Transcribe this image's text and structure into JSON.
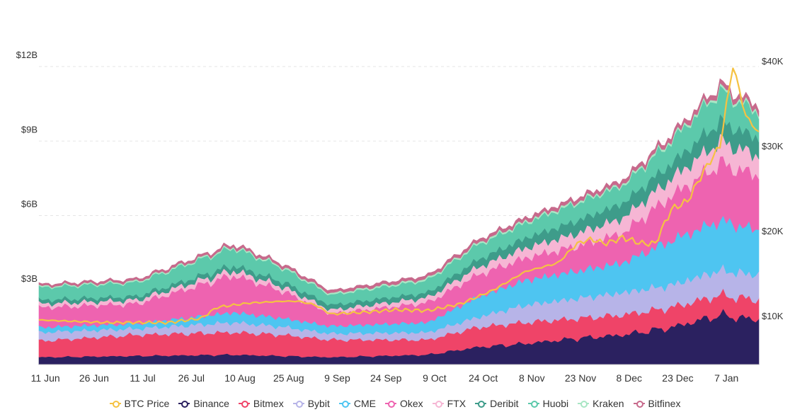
{
  "chart_data": {
    "type": "area",
    "stacked": true,
    "x_labels": [
      "11 Jun",
      "26 Jun",
      "11 Jul",
      "26 Jul",
      "10 Aug",
      "25 Aug",
      "9 Sep",
      "24 Sep",
      "9 Oct",
      "24 Oct",
      "8 Nov",
      "23 Nov",
      "8 Dec",
      "23 Dec",
      "7 Jan"
    ],
    "x_label_index": [
      2,
      17,
      32,
      47,
      62,
      77,
      92,
      107,
      122,
      137,
      152,
      167,
      182,
      197,
      212
    ],
    "y_left": {
      "ticks": [
        3,
        6,
        9,
        12
      ],
      "labels": [
        "$3B",
        "$6B",
        "$9B",
        "$12B"
      ],
      "range": [
        0,
        13.5
      ]
    },
    "y_right": {
      "ticks": [
        10000,
        20000,
        30000,
        40000
      ],
      "labels": [
        "$10K",
        "$20K",
        "$30K",
        "$40K"
      ],
      "range": [
        3000,
        45000
      ]
    },
    "grid": "horizontal-dashed",
    "legend_position": "bottom",
    "series": [
      {
        "name": "Binance",
        "color": "#2b2160",
        "kf": [
          [
            0,
            0.3
          ],
          [
            30,
            0.35
          ],
          [
            60,
            0.4
          ],
          [
            90,
            0.3
          ],
          [
            120,
            0.4
          ],
          [
            135,
            0.7
          ],
          [
            150,
            0.85
          ],
          [
            165,
            1.05
          ],
          [
            180,
            1.2
          ],
          [
            195,
            1.5
          ],
          [
            210,
            2.0
          ],
          [
            222,
            1.8
          ]
        ]
      },
      {
        "name": "Bitmex",
        "color": "#ef4468",
        "kf": [
          [
            0,
            0.65
          ],
          [
            30,
            0.85
          ],
          [
            60,
            0.9
          ],
          [
            75,
            0.85
          ],
          [
            90,
            0.7
          ],
          [
            120,
            0.6
          ],
          [
            135,
            0.8
          ],
          [
            150,
            0.85
          ],
          [
            165,
            0.8
          ],
          [
            180,
            0.8
          ],
          [
            195,
            0.8
          ],
          [
            210,
            0.8
          ],
          [
            222,
            0.8
          ]
        ]
      },
      {
        "name": "Bybit",
        "color": "#b7b4e8",
        "kf": [
          [
            0,
            0.35
          ],
          [
            30,
            0.25
          ],
          [
            60,
            0.4
          ],
          [
            90,
            0.25
          ],
          [
            120,
            0.3
          ],
          [
            135,
            0.4
          ],
          [
            150,
            0.7
          ],
          [
            165,
            0.8
          ],
          [
            180,
            0.9
          ],
          [
            195,
            0.9
          ],
          [
            210,
            1.0
          ],
          [
            222,
            1.0
          ]
        ]
      },
      {
        "name": "CME",
        "color": "#4ec5f1",
        "kf": [
          [
            0,
            0.2
          ],
          [
            30,
            0.2
          ],
          [
            60,
            0.4
          ],
          [
            90,
            0.3
          ],
          [
            120,
            0.4
          ],
          [
            135,
            0.8
          ],
          [
            150,
            1.0
          ],
          [
            165,
            1.1
          ],
          [
            180,
            1.2
          ],
          [
            195,
            1.8
          ],
          [
            210,
            2.0
          ],
          [
            222,
            1.8
          ]
        ]
      },
      {
        "name": "Okex",
        "color": "#ee63b0",
        "kf": [
          [
            0,
            0.8
          ],
          [
            30,
            0.8
          ],
          [
            60,
            1.5
          ],
          [
            75,
            1.1
          ],
          [
            90,
            0.5
          ],
          [
            120,
            0.8
          ],
          [
            135,
            0.9
          ],
          [
            150,
            0.9
          ],
          [
            165,
            1.0
          ],
          [
            180,
            1.2
          ],
          [
            195,
            1.8
          ],
          [
            210,
            2.3
          ],
          [
            222,
            2.2
          ]
        ]
      },
      {
        "name": "FTX",
        "color": "#f6b6d4",
        "kf": [
          [
            0,
            0.15
          ],
          [
            30,
            0.15
          ],
          [
            60,
            0.2
          ],
          [
            90,
            0.15
          ],
          [
            120,
            0.2
          ],
          [
            135,
            0.3
          ],
          [
            150,
            0.4
          ],
          [
            165,
            0.5
          ],
          [
            180,
            0.6
          ],
          [
            195,
            0.7
          ],
          [
            210,
            0.9
          ],
          [
            222,
            0.8
          ]
        ]
      },
      {
        "name": "Deribit",
        "color": "#3e9c8a",
        "kf": [
          [
            0,
            0.15
          ],
          [
            30,
            0.15
          ],
          [
            60,
            0.2
          ],
          [
            90,
            0.2
          ],
          [
            120,
            0.2
          ],
          [
            135,
            0.3
          ],
          [
            150,
            0.4
          ],
          [
            165,
            0.5
          ],
          [
            180,
            0.6
          ],
          [
            195,
            0.6
          ],
          [
            210,
            0.8
          ],
          [
            222,
            0.7
          ]
        ]
      },
      {
        "name": "Huobi",
        "color": "#5cc9ab",
        "kf": [
          [
            0,
            0.5
          ],
          [
            30,
            0.55
          ],
          [
            60,
            0.7
          ],
          [
            90,
            0.4
          ],
          [
            120,
            0.5
          ],
          [
            135,
            0.6
          ],
          [
            150,
            0.6
          ],
          [
            165,
            0.7
          ],
          [
            180,
            0.7
          ],
          [
            195,
            0.9
          ],
          [
            210,
            1.2
          ],
          [
            222,
            1.0
          ]
        ]
      },
      {
        "name": "Kraken",
        "color": "#a8e6c4",
        "kf": [
          [
            0,
            0.05
          ],
          [
            60,
            0.06
          ],
          [
            120,
            0.07
          ],
          [
            180,
            0.08
          ],
          [
            222,
            0.1
          ]
        ]
      },
      {
        "name": "Bitfinex",
        "color": "#c76a8c",
        "kf": [
          [
            0,
            0.08
          ],
          [
            60,
            0.1
          ],
          [
            120,
            0.12
          ],
          [
            180,
            0.15
          ],
          [
            222,
            0.2
          ]
        ]
      }
    ],
    "btc_price": {
      "name": "BTC Price",
      "color": "#f5c242",
      "kf": [
        [
          0,
          9500
        ],
        [
          20,
          9200
        ],
        [
          40,
          9200
        ],
        [
          50,
          9700
        ],
        [
          55,
          11000
        ],
        [
          65,
          11500
        ],
        [
          75,
          11700
        ],
        [
          80,
          11700
        ],
        [
          85,
          11300
        ],
        [
          90,
          10200
        ],
        [
          100,
          10400
        ],
        [
          110,
          10700
        ],
        [
          120,
          10600
        ],
        [
          130,
          11400
        ],
        [
          140,
          13000
        ],
        [
          150,
          15200
        ],
        [
          160,
          16200
        ],
        [
          166,
          18500
        ],
        [
          170,
          19000
        ],
        [
          175,
          18500
        ],
        [
          180,
          19200
        ],
        [
          186,
          18500
        ],
        [
          190,
          18500
        ],
        [
          195,
          22500
        ],
        [
          200,
          23500
        ],
        [
          205,
          27000
        ],
        [
          210,
          30000
        ],
        [
          214,
          39500
        ],
        [
          218,
          33500
        ],
        [
          222,
          31500
        ]
      ]
    }
  }
}
